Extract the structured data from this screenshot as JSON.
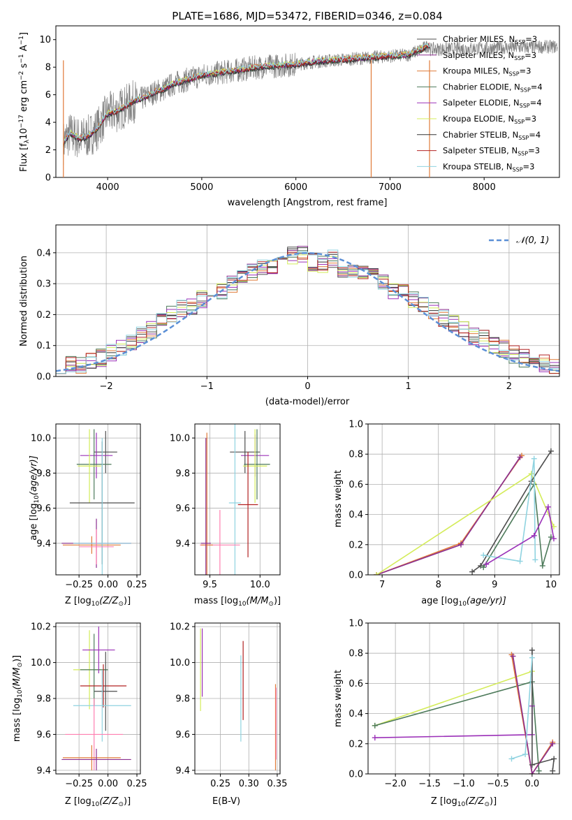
{
  "title": "PLATE=1686, MJD=53472, FIBERID=0346, z=0.084",
  "legend_spectrum": [
    {
      "label": "Chabrier MILES, N",
      "sub": "SSP",
      "suffix": "=3",
      "color": "#4d4d4d"
    },
    {
      "label": "Salpeter MILES, N",
      "sub": "SSP",
      "suffix": "=3",
      "color": "#8b2f8f"
    },
    {
      "label": "Kroupa MILES, N",
      "sub": "SSP",
      "suffix": "=3",
      "color": "#e07b39"
    },
    {
      "label": "Chabrier ELODIE, N",
      "sub": "SSP",
      "suffix": "=4",
      "color": "#4d7a5a"
    },
    {
      "label": "Salpeter ELODIE, N",
      "sub": "SSP",
      "suffix": "=4",
      "color": "#9b30b8"
    },
    {
      "label": "Kroupa ELODIE, N",
      "sub": "SSP",
      "suffix": "=3",
      "color": "#d4ec5a"
    },
    {
      "label": "Chabrier STELIB, N",
      "sub": "SSP",
      "suffix": "=4",
      "color": "#333333"
    },
    {
      "label": "Salpeter STELIB, N",
      "sub": "SSP",
      "suffix": "=3",
      "color": "#b22222"
    },
    {
      "label": "Kroupa STELIB, N",
      "sub": "SSP",
      "suffix": "=3",
      "color": "#8fd3e0"
    }
  ],
  "legend_hist": {
    "label": "𝒩(0, 1)",
    "color": "#5b8fd6"
  },
  "axis_labels": {
    "spec_y": "Flux [f",
    "spec_y_rest": "10",
    "spec_y_exp": "−17",
    "spec_y_tail": " erg cm",
    "spec_x": "wavelength [Angstrom, rest frame]",
    "hist_y": "Normed distribution",
    "hist_x": "(data-model)/error",
    "age_y": "age  [log",
    "age_y_tail": "(age/yr)]",
    "mass_y": "mass [log",
    "mass_y_tail": "(M/M",
    "z_x": "Z [log",
    "z_x_tail": "(Z/Z",
    "mass_x": "mass [log",
    "ebv_x": "E(B-V)",
    "mw_y": "mass weight",
    "age_x": "age  [log",
    "ten": "10"
  },
  "chart_data": [
    {
      "type": "line",
      "title": "PLATE=1686, MJD=53472, FIBERID=0346, z=0.084",
      "xlabel": "wavelength [Angstrom, rest frame]",
      "ylabel": "Flux [f_λ 10^-17 erg cm^-2 s^-1 A^-1]",
      "xlim": [
        3450,
        8800
      ],
      "ylim": [
        0,
        11
      ],
      "xticks": [
        4000,
        5000,
        6000,
        7000,
        8000
      ],
      "yticks": [
        0,
        2,
        4,
        6,
        8,
        10
      ],
      "grid": false,
      "legend": "top-right",
      "series_data": {
        "x": [
          3530,
          3600,
          3700,
          3800,
          3900,
          3950,
          4000,
          4100,
          4200,
          4300,
          4400,
          4500,
          4600,
          4700,
          4800,
          4900,
          5000,
          5200,
          5400,
          5600,
          5800,
          6000,
          6200,
          6400,
          6600,
          6800,
          7000,
          7200,
          7300,
          7420
        ],
        "y": [
          2.5,
          3.2,
          2.8,
          3.0,
          3.6,
          4.2,
          4.6,
          4.8,
          5.2,
          5.6,
          5.8,
          6.2,
          6.4,
          6.8,
          7.0,
          7.2,
          7.4,
          7.6,
          7.8,
          8.0,
          8.1,
          8.2,
          8.4,
          8.5,
          8.6,
          8.7,
          8.8,
          8.9,
          9.2,
          9.6
        ]
      }
    },
    {
      "type": "bar",
      "xlabel": "(data-model)/error",
      "ylabel": "Normed distribution",
      "xlim": [
        -2.5,
        2.5
      ],
      "ylim": [
        0,
        0.49
      ],
      "xticks": [
        -2,
        -1,
        0,
        1,
        2
      ],
      "yticks": [
        0.0,
        0.1,
        0.2,
        0.3,
        0.4
      ],
      "grid": true,
      "legend": "top-right",
      "bin_centers": [
        -2.45,
        -2.35,
        -2.25,
        -2.15,
        -2.05,
        -1.95,
        -1.85,
        -1.75,
        -1.65,
        -1.55,
        -1.45,
        -1.35,
        -1.25,
        -1.15,
        -1.05,
        -0.95,
        -0.85,
        -0.75,
        -0.65,
        -0.55,
        -0.45,
        -0.35,
        -0.25,
        -0.15,
        -0.05,
        0.05,
        0.15,
        0.25,
        0.35,
        0.45,
        0.55,
        0.65,
        0.75,
        0.85,
        0.95,
        1.05,
        1.15,
        1.25,
        1.35,
        1.45,
        1.55,
        1.65,
        1.75,
        1.85,
        1.95,
        2.05,
        2.15,
        2.25,
        2.35,
        2.45
      ],
      "values": [
        0.03,
        0.035,
        0.04,
        0.05,
        0.06,
        0.08,
        0.09,
        0.11,
        0.13,
        0.15,
        0.18,
        0.2,
        0.22,
        0.23,
        0.25,
        0.26,
        0.28,
        0.3,
        0.32,
        0.34,
        0.35,
        0.36,
        0.38,
        0.39,
        0.4,
        0.37,
        0.36,
        0.38,
        0.35,
        0.34,
        0.33,
        0.32,
        0.3,
        0.28,
        0.27,
        0.25,
        0.23,
        0.21,
        0.19,
        0.17,
        0.15,
        0.13,
        0.12,
        0.1,
        0.09,
        0.07,
        0.06,
        0.05,
        0.04,
        0.03
      ],
      "curve": {
        "name": "𝒩(0, 1)",
        "mu": 0,
        "sigma": 1
      }
    },
    {
      "type": "scatter",
      "xlabel": "Z [log10(Z/Z⊙)]",
      "ylabel": "age [log10(age/yr)]",
      "xlim": [
        -0.45,
        0.28
      ],
      "ylim": [
        9.22,
        10.08
      ],
      "xticks": [
        -0.25,
        0.0,
        0.25
      ],
      "yticks": [
        9.4,
        9.6,
        9.8,
        10.0
      ],
      "points": [
        {
          "x": -0.02,
          "y": 9.92,
          "xerr": 0.1,
          "yerr": 0.12,
          "color": "#4d4d4d"
        },
        {
          "x": -0.1,
          "y": 9.9,
          "xerr": 0.14,
          "yerr": 0.13,
          "color": "#9b30b8"
        },
        {
          "x": -0.12,
          "y": 9.85,
          "xerr": 0.15,
          "yerr": 0.2,
          "color": "#4d7a5a"
        },
        {
          "x": -0.16,
          "y": 9.84,
          "xerr": 0.1,
          "yerr": 0.21,
          "color": "#d4ec5a"
        },
        {
          "x": -0.05,
          "y": 9.63,
          "xerr": 0.28,
          "yerr": 0.35,
          "color": "#4d4d4d"
        },
        {
          "x": -0.14,
          "y": 9.39,
          "xerr": 0.25,
          "yerr": 0.05,
          "color": "#e07b39"
        },
        {
          "x": -0.1,
          "y": 9.4,
          "xerr": 0.3,
          "yerr": 0.14,
          "color": "#8b2f8f"
        },
        {
          "x": -0.05,
          "y": 9.4,
          "xerr": 0.25,
          "yerr": 0.6,
          "color": "#8fd3e0"
        },
        {
          "x": -0.1,
          "y": 9.38,
          "xerr": 0.15,
          "yerr": 0.1,
          "color": "#ff7fb0"
        }
      ]
    },
    {
      "type": "scatter",
      "xlabel": "mass [log10(M/M⊙)]",
      "ylabel": "",
      "xlim": [
        9.35,
        10.2
      ],
      "ylim": [
        9.22,
        10.08
      ],
      "xticks": [
        9.5,
        10.0
      ],
      "yticks": [
        9.4,
        9.6,
        9.8,
        10.0
      ],
      "points": [
        {
          "x": 9.95,
          "y": 9.9,
          "xerr": 0.14,
          "yerr": 0.12,
          "color": "#9b30b8"
        },
        {
          "x": 9.85,
          "y": 9.92,
          "xerr": 0.15,
          "yerr": 0.12,
          "color": "#4d4d4d"
        },
        {
          "x": 9.97,
          "y": 9.85,
          "xerr": 0.13,
          "yerr": 0.2,
          "color": "#4d7a5a"
        },
        {
          "x": 9.95,
          "y": 9.84,
          "xerr": 0.12,
          "yerr": 0.21,
          "color": "#d4ec5a"
        },
        {
          "x": 9.88,
          "y": 9.62,
          "xerr": 0.1,
          "yerr": 0.3,
          "color": "#b22222"
        },
        {
          "x": 9.75,
          "y": 9.63,
          "xerr": 0.06,
          "yerr": 0.45,
          "color": "#8fd3e0"
        },
        {
          "x": 9.6,
          "y": 9.39,
          "xerr": 0.2,
          "yerr": 0.2,
          "color": "#ff7fb0"
        },
        {
          "x": 9.47,
          "y": 9.39,
          "xerr": 0.06,
          "yerr": 0.64,
          "color": "#e07b39"
        },
        {
          "x": 9.46,
          "y": 9.4,
          "xerr": 0.05,
          "yerr": 0.6,
          "color": "#8b2f8f"
        }
      ]
    },
    {
      "type": "line",
      "xlabel": "age [log10(age/yr)]",
      "ylabel": "mass weight",
      "xlim": [
        6.75,
        10.15
      ],
      "ylim": [
        0,
        1
      ],
      "xticks": [
        7,
        8,
        9,
        10
      ],
      "yticks": [
        0.0,
        0.2,
        0.4,
        0.6,
        0.8,
        1.0
      ],
      "grid": true,
      "series": [
        {
          "values": [
            [
              6.9,
              0.0
            ],
            [
              8.4,
              0.21
            ],
            [
              9.48,
              0.79
            ]
          ],
          "color": "#e07b39"
        },
        {
          "values": [
            [
              6.9,
              0.0
            ],
            [
              8.4,
              0.2
            ],
            [
              9.45,
              0.78
            ]
          ],
          "color": "#8b2f8f"
        },
        {
          "values": [
            [
              6.9,
              0.0
            ],
            [
              9.65,
              0.67
            ],
            [
              10.05,
              0.32
            ]
          ],
          "color": "#d4ec5a"
        },
        {
          "values": [
            [
              8.6,
              0.02
            ],
            [
              8.75,
              0.06
            ],
            [
              9.65,
              0.62
            ],
            [
              10.0,
              0.82
            ]
          ],
          "color": "#4d4d4d"
        },
        {
          "values": [
            [
              8.8,
              0.05
            ],
            [
              9.7,
              0.6
            ],
            [
              9.85,
              0.06
            ],
            [
              10.0,
              0.25
            ]
          ],
          "color": "#4d7a5a"
        },
        {
          "values": [
            [
              8.8,
              0.13
            ],
            [
              9.45,
              0.09
            ],
            [
              9.7,
              0.77
            ],
            [
              9.72,
              0.1
            ]
          ],
          "color": "#8fd3e0"
        },
        {
          "values": [
            [
              8.85,
              0.07
            ],
            [
              9.7,
              0.26
            ],
            [
              9.95,
              0.45
            ],
            [
              10.05,
              0.24
            ]
          ],
          "color": "#9b30b8"
        }
      ]
    },
    {
      "type": "scatter",
      "xlabel": "Z [log10(Z/Z⊙)]",
      "ylabel": "mass [log10(M/M⊙)]",
      "xlim": [
        -0.45,
        0.28
      ],
      "ylim": [
        9.38,
        10.22
      ],
      "xticks": [
        -0.25,
        0.0,
        0.25
      ],
      "yticks": [
        9.4,
        9.6,
        9.8,
        10.0,
        10.2
      ],
      "points": [
        {
          "x": -0.16,
          "y": 9.96,
          "xerr": 0.14,
          "yerr": 0.22,
          "color": "#d4ec5a"
        },
        {
          "x": -0.12,
          "y": 9.96,
          "xerr": 0.12,
          "yerr": 0.2,
          "color": "#4d7a5a"
        },
        {
          "x": -0.08,
          "y": 10.07,
          "xerr": 0.14,
          "yerr": 0.13,
          "color": "#9b30b8"
        },
        {
          "x": -0.04,
          "y": 9.87,
          "xerr": 0.2,
          "yerr": 0.12,
          "color": "#b22222"
        },
        {
          "x": -0.02,
          "y": 9.84,
          "xerr": 0.1,
          "yerr": 0.22,
          "color": "#4d4d4d"
        },
        {
          "x": -0.05,
          "y": 9.76,
          "xerr": 0.25,
          "yerr": 0.2,
          "color": "#8fd3e0"
        },
        {
          "x": -0.12,
          "y": 9.6,
          "xerr": 0.25,
          "yerr": 0.2,
          "color": "#ff7fb0"
        },
        {
          "x": -0.14,
          "y": 9.47,
          "xerr": 0.25,
          "yerr": 0.07,
          "color": "#e07b39"
        },
        {
          "x": -0.1,
          "y": 9.46,
          "xerr": 0.3,
          "yerr": 0.06,
          "color": "#8b2f8f"
        }
      ]
    },
    {
      "type": "scatter",
      "xlabel": "E(B-V)",
      "ylabel": "",
      "xlim": [
        0.205,
        0.355
      ],
      "ylim": [
        9.38,
        10.22
      ],
      "xticks": [
        0.25,
        0.3,
        0.35
      ],
      "yticks": [
        9.4,
        9.6,
        9.8,
        10.0,
        10.2
      ],
      "points": [
        {
          "x": 0.215,
          "y": 9.96,
          "yerr": 0.23,
          "color": "#d4ec5a"
        },
        {
          "x": 0.218,
          "y": 10.0,
          "yerr": 0.19,
          "color": "#9b30b8"
        },
        {
          "x": 0.286,
          "y": 9.8,
          "yerr": 0.24,
          "color": "#8fd3e0"
        },
        {
          "x": 0.29,
          "y": 9.9,
          "yerr": 0.22,
          "color": "#b22222"
        },
        {
          "x": 0.347,
          "y": 9.64,
          "yerr": 0.24,
          "color": "#e07b39"
        },
        {
          "x": 0.348,
          "y": 9.66,
          "yerr": 0.2,
          "color": "#ff7fb0"
        }
      ]
    },
    {
      "type": "line",
      "xlabel": "Z [log10(Z/Z⊙)]",
      "ylabel": "mass weight",
      "xlim": [
        -2.4,
        0.4
      ],
      "ylim": [
        0,
        1
      ],
      "xticks": [
        -2.0,
        -1.5,
        -1.0,
        -0.5,
        0.0
      ],
      "yticks": [
        0.0,
        0.2,
        0.4,
        0.6,
        0.8,
        1.0
      ],
      "grid": true,
      "series": [
        {
          "values": [
            [
              -2.3,
              0.32
            ],
            [
              0.0,
              0.68
            ]
          ],
          "color": "#d4ec5a"
        },
        {
          "values": [
            [
              -2.3,
              0.32
            ],
            [
              0.0,
              0.61
            ],
            [
              0.1,
              0.02
            ]
          ],
          "color": "#4d7a5a"
        },
        {
          "values": [
            [
              -2.3,
              0.24
            ],
            [
              0.0,
              0.26
            ],
            [
              0.0,
              0.45
            ]
          ],
          "color": "#9b30b8"
        },
        {
          "values": [
            [
              -0.3,
              0.79
            ],
            [
              0.0,
              0.0
            ],
            [
              0.3,
              0.21
            ]
          ],
          "color": "#e07b39"
        },
        {
          "values": [
            [
              -0.28,
              0.78
            ],
            [
              0.0,
              0.0
            ],
            [
              0.3,
              0.2
            ]
          ],
          "color": "#8b2f8f"
        },
        {
          "values": [
            [
              0.0,
              0.82
            ],
            [
              0.0,
              0.06
            ],
            [
              0.32,
              0.1
            ],
            [
              0.3,
              0.02
            ]
          ],
          "color": "#4d4d4d"
        },
        {
          "values": [
            [
              -0.3,
              0.1
            ],
            [
              -0.1,
              0.13
            ],
            [
              0.0,
              0.77
            ]
          ],
          "color": "#8fd3e0"
        }
      ]
    }
  ]
}
